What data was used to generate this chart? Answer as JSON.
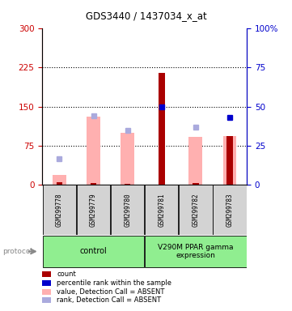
{
  "title": "GDS3440 / 1437034_x_at",
  "samples": [
    "GSM299778",
    "GSM299779",
    "GSM299780",
    "GSM299781",
    "GSM299782",
    "GSM299783"
  ],
  "pink_bar_heights": [
    20,
    130,
    100,
    0,
    92,
    93
  ],
  "red_bar_heights": [
    5,
    4,
    3,
    215,
    4,
    93
  ],
  "blue_absent_sq_y_right": [
    17,
    44,
    35,
    0,
    37,
    0
  ],
  "blue_present_sq_y_right": [
    0,
    0,
    0,
    50,
    0,
    43
  ],
  "ylim_left": [
    0,
    300
  ],
  "ylim_right": [
    0,
    100
  ],
  "yticks_left": [
    0,
    75,
    150,
    225,
    300
  ],
  "yticks_right": [
    0,
    25,
    50,
    75,
    100
  ],
  "left_color": "#cc0000",
  "right_color": "#0000cc",
  "pink_color": "#ffb0b0",
  "blue_absent_color": "#aaaadd",
  "red_bar_color": "#aa0000",
  "blue_present_color": "#0000cc",
  "gray_bg": "#d3d3d3",
  "green_bg": "#90ee90",
  "control_label": "control",
  "treatment_label": "V290M PPAR gamma\nexpression",
  "legend": [
    {
      "color": "#aa0000",
      "label": "count"
    },
    {
      "color": "#0000cc",
      "label": "percentile rank within the sample"
    },
    {
      "color": "#ffb0b0",
      "label": "value, Detection Call = ABSENT"
    },
    {
      "color": "#aaaadd",
      "label": "rank, Detection Call = ABSENT"
    }
  ],
  "protocol_label": "protocol"
}
